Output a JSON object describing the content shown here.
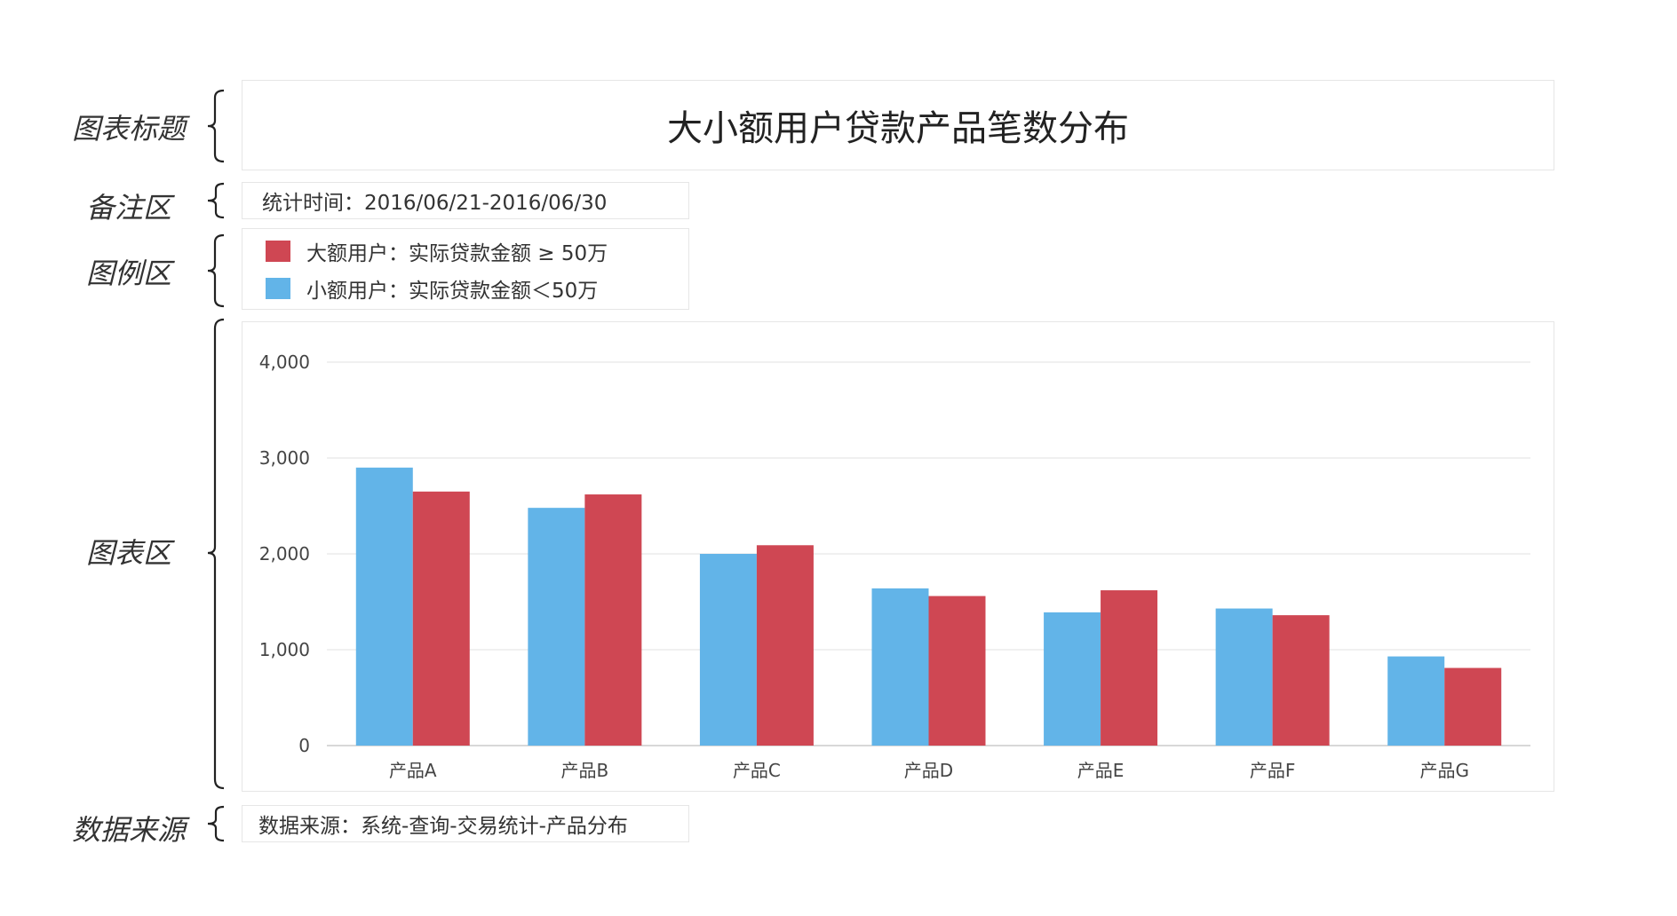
{
  "side_labels": {
    "title": "图表标题",
    "note": "备注区",
    "legend": "图例区",
    "chart": "图表区",
    "source": "数据来源"
  },
  "title": "大小额用户贷款产品笔数分布",
  "note": "统计时间：2016/06/21-2016/06/30",
  "legend": [
    {
      "label": "大额用户：实际贷款金额 ≥ 50万",
      "color": "#cf4753"
    },
    {
      "label": "小额用户：实际贷款金额＜50万",
      "color": "#62b4e8"
    }
  ],
  "source": "数据来源：系统-查询-交易统计-产品分布",
  "chart_data": {
    "type": "bar",
    "categories": [
      "产品A",
      "产品B",
      "产品C",
      "产品D",
      "产品E",
      "产品F",
      "产品G"
    ],
    "series": [
      {
        "name": "小额用户",
        "color": "#62b4e8",
        "values": [
          2900,
          2480,
          2000,
          1640,
          1390,
          1430,
          930
        ]
      },
      {
        "name": "大额用户",
        "color": "#cf4753",
        "values": [
          2650,
          2620,
          2090,
          1560,
          1620,
          1360,
          810
        ]
      }
    ],
    "yticks": [
      0,
      1000,
      2000,
      3000,
      4000
    ],
    "ytick_labels": [
      "0",
      "1,000",
      "2,000",
      "3,000",
      "4,000"
    ],
    "ylim": [
      0,
      4000
    ],
    "grid": true,
    "title": "",
    "xlabel": "",
    "ylabel": ""
  }
}
